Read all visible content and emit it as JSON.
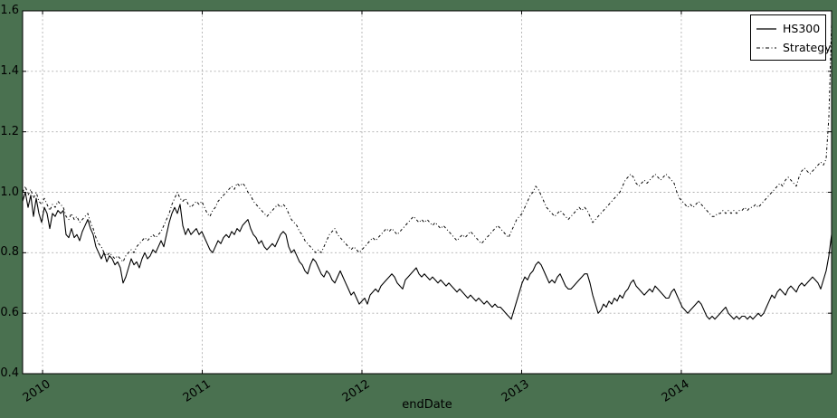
{
  "colors": {
    "figure_background": "#4a7150",
    "plot_background": "#ffffff",
    "line_color": "#000000",
    "grid_color": "#b0b0b0",
    "frame_color": "#000000"
  },
  "chart_data": {
    "type": "line",
    "title": "",
    "xlabel": "endDate",
    "ylabel": "",
    "grid": true,
    "legend_position": "upper right",
    "xlim": [
      2009.875,
      2014.941
    ],
    "ylim": [
      0.4,
      1.6
    ],
    "xticks": [
      2010,
      2011,
      2012,
      2013,
      2014
    ],
    "xtick_labels": [
      "2010",
      "2011",
      "2012",
      "2013",
      "2014"
    ],
    "yticks": [
      0.4,
      0.6,
      0.8,
      1.0,
      1.2,
      1.4,
      1.6
    ],
    "ytick_labels": [
      "0.4",
      "0.6",
      "0.8",
      "1.0",
      "1.2",
      "1.4",
      "1.6"
    ],
    "x_unit": "decimal_year",
    "x_start": 2009.875,
    "x_step": 0.017,
    "n_points": 299,
    "series": [
      {
        "name": "HS300",
        "line_style": "solid",
        "color": "#000000",
        "values": [
          0.97,
          1.0,
          0.95,
          0.99,
          0.92,
          0.98,
          0.93,
          0.9,
          0.95,
          0.93,
          0.88,
          0.93,
          0.92,
          0.94,
          0.93,
          0.94,
          0.86,
          0.85,
          0.88,
          0.85,
          0.86,
          0.84,
          0.87,
          0.89,
          0.91,
          0.88,
          0.86,
          0.82,
          0.8,
          0.78,
          0.8,
          0.77,
          0.79,
          0.78,
          0.76,
          0.77,
          0.75,
          0.7,
          0.72,
          0.75,
          0.78,
          0.76,
          0.77,
          0.75,
          0.78,
          0.8,
          0.78,
          0.79,
          0.81,
          0.8,
          0.82,
          0.84,
          0.82,
          0.86,
          0.9,
          0.93,
          0.95,
          0.93,
          0.96,
          0.89,
          0.86,
          0.88,
          0.86,
          0.87,
          0.88,
          0.86,
          0.87,
          0.85,
          0.83,
          0.81,
          0.8,
          0.82,
          0.84,
          0.83,
          0.85,
          0.86,
          0.85,
          0.87,
          0.86,
          0.88,
          0.87,
          0.89,
          0.9,
          0.91,
          0.88,
          0.86,
          0.85,
          0.83,
          0.84,
          0.82,
          0.81,
          0.82,
          0.83,
          0.82,
          0.84,
          0.86,
          0.87,
          0.86,
          0.82,
          0.8,
          0.81,
          0.79,
          0.77,
          0.76,
          0.74,
          0.73,
          0.76,
          0.78,
          0.77,
          0.75,
          0.73,
          0.72,
          0.74,
          0.73,
          0.71,
          0.7,
          0.72,
          0.74,
          0.72,
          0.7,
          0.68,
          0.66,
          0.67,
          0.65,
          0.63,
          0.64,
          0.65,
          0.63,
          0.66,
          0.67,
          0.68,
          0.67,
          0.69,
          0.7,
          0.71,
          0.72,
          0.73,
          0.72,
          0.7,
          0.69,
          0.68,
          0.71,
          0.72,
          0.73,
          0.74,
          0.75,
          0.73,
          0.72,
          0.73,
          0.72,
          0.71,
          0.72,
          0.71,
          0.7,
          0.71,
          0.7,
          0.69,
          0.7,
          0.69,
          0.68,
          0.67,
          0.68,
          0.67,
          0.66,
          0.65,
          0.66,
          0.65,
          0.64,
          0.65,
          0.64,
          0.63,
          0.64,
          0.63,
          0.62,
          0.63,
          0.62,
          0.62,
          0.61,
          0.6,
          0.59,
          0.58,
          0.61,
          0.64,
          0.67,
          0.7,
          0.72,
          0.71,
          0.73,
          0.74,
          0.76,
          0.77,
          0.76,
          0.74,
          0.72,
          0.7,
          0.71,
          0.7,
          0.72,
          0.73,
          0.71,
          0.69,
          0.68,
          0.68,
          0.69,
          0.7,
          0.71,
          0.72,
          0.73,
          0.73,
          0.7,
          0.66,
          0.63,
          0.6,
          0.61,
          0.63,
          0.62,
          0.64,
          0.63,
          0.65,
          0.64,
          0.66,
          0.65,
          0.67,
          0.68,
          0.7,
          0.71,
          0.69,
          0.68,
          0.67,
          0.66,
          0.67,
          0.68,
          0.67,
          0.69,
          0.68,
          0.67,
          0.66,
          0.65,
          0.65,
          0.67,
          0.68,
          0.66,
          0.64,
          0.62,
          0.61,
          0.6,
          0.61,
          0.62,
          0.63,
          0.64,
          0.63,
          0.61,
          0.59,
          0.58,
          0.59,
          0.58,
          0.59,
          0.6,
          0.61,
          0.62,
          0.6,
          0.59,
          0.58,
          0.59,
          0.58,
          0.59,
          0.59,
          0.58,
          0.59,
          0.58,
          0.59,
          0.6,
          0.59,
          0.6,
          0.62,
          0.64,
          0.66,
          0.65,
          0.67,
          0.68,
          0.67,
          0.66,
          0.68,
          0.69,
          0.68,
          0.67,
          0.69,
          0.7,
          0.69,
          0.7,
          0.71,
          0.72,
          0.71,
          0.7,
          0.68,
          0.71,
          0.74,
          0.79,
          0.86
        ]
      },
      {
        "name": "Strategy",
        "line_style": "dash-dot",
        "color": "#000000",
        "values": [
          1.0,
          1.02,
          0.99,
          1.01,
          0.98,
          1.0,
          0.97,
          0.96,
          0.98,
          0.96,
          0.94,
          0.96,
          0.95,
          0.97,
          0.96,
          0.95,
          0.92,
          0.91,
          0.93,
          0.91,
          0.92,
          0.9,
          0.91,
          0.92,
          0.93,
          0.9,
          0.88,
          0.85,
          0.83,
          0.82,
          0.8,
          0.79,
          0.8,
          0.79,
          0.78,
          0.79,
          0.78,
          0.77,
          0.79,
          0.8,
          0.81,
          0.8,
          0.82,
          0.83,
          0.84,
          0.85,
          0.84,
          0.85,
          0.86,
          0.85,
          0.86,
          0.87,
          0.89,
          0.91,
          0.93,
          0.96,
          0.98,
          1.0,
          0.98,
          0.97,
          0.98,
          0.96,
          0.95,
          0.96,
          0.97,
          0.96,
          0.97,
          0.95,
          0.93,
          0.92,
          0.94,
          0.95,
          0.97,
          0.98,
          0.99,
          1.0,
          1.01,
          1.02,
          1.01,
          1.03,
          1.02,
          1.03,
          1.02,
          1.0,
          0.99,
          0.97,
          0.96,
          0.95,
          0.94,
          0.93,
          0.92,
          0.93,
          0.94,
          0.95,
          0.96,
          0.95,
          0.96,
          0.95,
          0.93,
          0.91,
          0.9,
          0.89,
          0.87,
          0.86,
          0.84,
          0.83,
          0.82,
          0.81,
          0.8,
          0.81,
          0.8,
          0.82,
          0.84,
          0.86,
          0.87,
          0.88,
          0.86,
          0.85,
          0.84,
          0.83,
          0.82,
          0.81,
          0.82,
          0.81,
          0.8,
          0.81,
          0.82,
          0.83,
          0.84,
          0.85,
          0.84,
          0.85,
          0.86,
          0.87,
          0.88,
          0.87,
          0.88,
          0.87,
          0.86,
          0.87,
          0.88,
          0.89,
          0.9,
          0.91,
          0.92,
          0.91,
          0.9,
          0.91,
          0.9,
          0.91,
          0.9,
          0.89,
          0.9,
          0.89,
          0.88,
          0.89,
          0.88,
          0.87,
          0.86,
          0.85,
          0.84,
          0.85,
          0.86,
          0.85,
          0.86,
          0.87,
          0.86,
          0.85,
          0.84,
          0.83,
          0.84,
          0.85,
          0.86,
          0.87,
          0.88,
          0.89,
          0.88,
          0.87,
          0.86,
          0.85,
          0.87,
          0.89,
          0.91,
          0.92,
          0.93,
          0.95,
          0.97,
          0.99,
          1.0,
          1.02,
          1.01,
          0.99,
          0.97,
          0.95,
          0.94,
          0.93,
          0.92,
          0.93,
          0.94,
          0.93,
          0.92,
          0.91,
          0.92,
          0.93,
          0.94,
          0.95,
          0.94,
          0.95,
          0.94,
          0.92,
          0.9,
          0.91,
          0.92,
          0.93,
          0.94,
          0.95,
          0.96,
          0.97,
          0.98,
          0.99,
          1.0,
          1.02,
          1.04,
          1.05,
          1.06,
          1.05,
          1.03,
          1.02,
          1.03,
          1.04,
          1.03,
          1.04,
          1.05,
          1.06,
          1.05,
          1.04,
          1.05,
          1.06,
          1.05,
          1.04,
          1.03,
          1.0,
          0.98,
          0.97,
          0.96,
          0.95,
          0.96,
          0.95,
          0.96,
          0.97,
          0.96,
          0.95,
          0.94,
          0.93,
          0.92,
          0.92,
          0.93,
          0.93,
          0.94,
          0.93,
          0.94,
          0.93,
          0.94,
          0.93,
          0.94,
          0.94,
          0.95,
          0.94,
          0.95,
          0.95,
          0.96,
          0.95,
          0.96,
          0.97,
          0.98,
          0.99,
          1.0,
          1.01,
          1.02,
          1.03,
          1.02,
          1.04,
          1.05,
          1.04,
          1.03,
          1.02,
          1.05,
          1.07,
          1.08,
          1.07,
          1.06,
          1.07,
          1.08,
          1.09,
          1.1,
          1.09,
          1.11,
          1.25,
          1.56
        ]
      }
    ]
  }
}
